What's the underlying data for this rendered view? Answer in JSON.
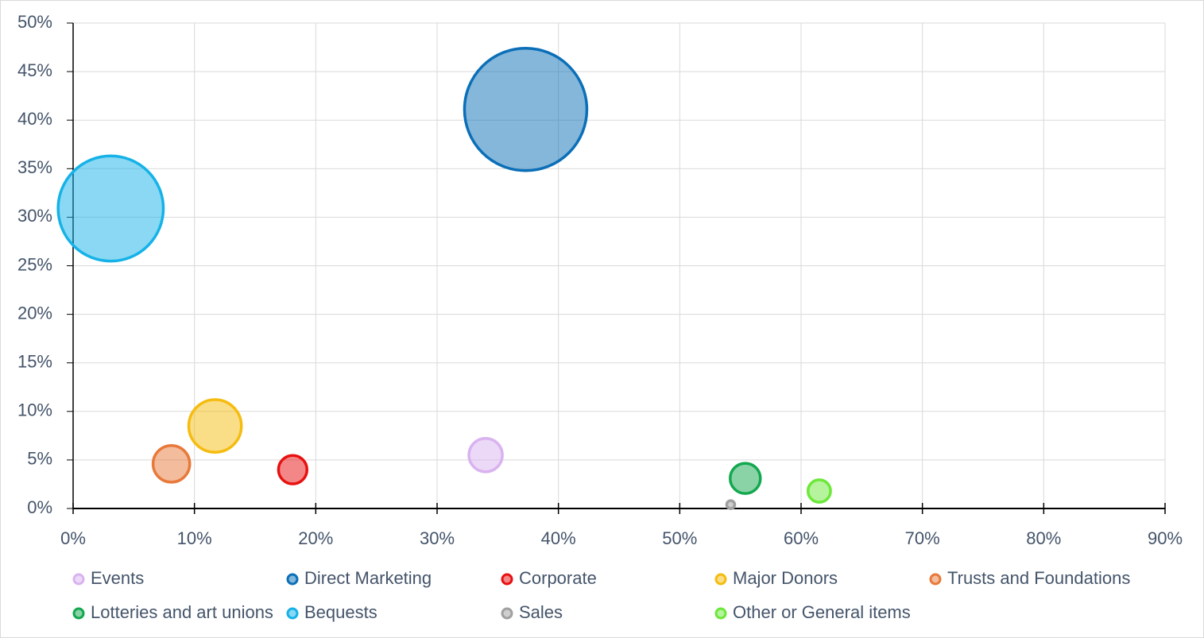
{
  "chart_data": {
    "type": "bubble",
    "xlim": [
      0,
      90
    ],
    "xticks": [
      {
        "value": 0,
        "label": "0%"
      },
      {
        "value": 10,
        "label": "10%"
      },
      {
        "value": 20,
        "label": "20%"
      },
      {
        "value": 30,
        "label": "30%"
      },
      {
        "value": 40,
        "label": "40%"
      },
      {
        "value": 50,
        "label": "50%"
      },
      {
        "value": 60,
        "label": "60%"
      },
      {
        "value": 70,
        "label": "70%"
      },
      {
        "value": 80,
        "label": "80%"
      },
      {
        "value": 90,
        "label": "90%"
      }
    ],
    "ylim": [
      0,
      50
    ],
    "yticks": [
      {
        "value": 0,
        "label": "0%"
      },
      {
        "value": 5,
        "label": "5%"
      },
      {
        "value": 10,
        "label": "10%"
      },
      {
        "value": 15,
        "label": "15%"
      },
      {
        "value": 20,
        "label": "20%"
      },
      {
        "value": 25,
        "label": "25%"
      },
      {
        "value": 30,
        "label": "30%"
      },
      {
        "value": 35,
        "label": "35%"
      },
      {
        "value": 40,
        "label": "40%"
      },
      {
        "value": 45,
        "label": "45%"
      },
      {
        "value": 50,
        "label": "50%"
      }
    ],
    "grid": true,
    "legend": "bottom",
    "series": [
      {
        "name": "Events",
        "color": "#d9b3f0",
        "x": [
          34.0
        ],
        "values": [
          5.5
        ],
        "size": [
          4.4
        ]
      },
      {
        "name": "Direct Marketing",
        "color": "#0b6fb8",
        "x": [
          37.3
        ],
        "values": [
          41.1
        ],
        "size": [
          59
        ]
      },
      {
        "name": "Corporate",
        "color": "#e81010",
        "x": [
          18.1
        ],
        "values": [
          4.0
        ],
        "size": [
          3.2
        ]
      },
      {
        "name": "Major Donors",
        "color": "#f5bc10",
        "x": [
          11.7
        ],
        "values": [
          8.5
        ],
        "size": [
          10.9
        ]
      },
      {
        "name": "Trusts and Foundations",
        "color": "#e8793a",
        "x": [
          8.1
        ],
        "values": [
          4.6
        ],
        "size": [
          5.3
        ]
      },
      {
        "name": "Lotteries and art unions",
        "color": "#13a84f",
        "x": [
          55.4
        ],
        "values": [
          3.1
        ],
        "size": [
          3.6
        ]
      },
      {
        "name": "Bequests",
        "color": "#15b2e8",
        "x": [
          3.1
        ],
        "values": [
          30.9
        ],
        "size": [
          43.6
        ]
      },
      {
        "name": "Sales",
        "color": "#a0a0a0",
        "x": [
          54.2
        ],
        "values": [
          0.4
        ],
        "size": [
          0.25
        ]
      },
      {
        "name": "Other or General items",
        "color": "#6ce83a",
        "x": [
          61.5
        ],
        "values": [
          1.8
        ],
        "size": [
          2
        ]
      }
    ]
  }
}
